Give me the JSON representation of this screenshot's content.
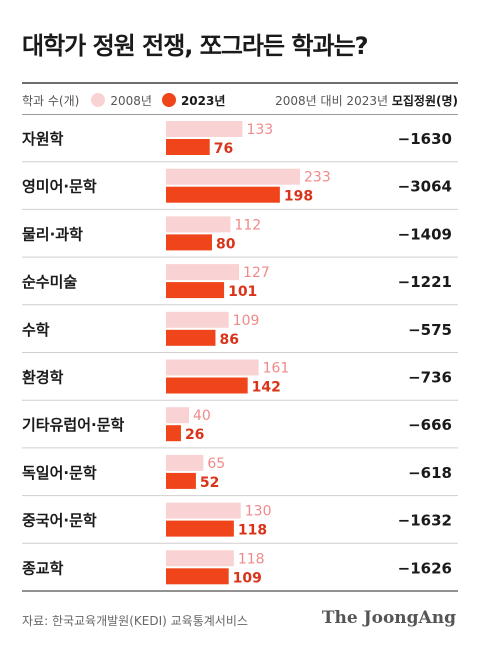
{
  "title": "대학가 정원 전쟁, 쪼그라든 학과는?",
  "legend": {
    "unit_label": "학과 수(개)",
    "series_2008": "2008년",
    "series_2023": "2023년",
    "change_prefix": "2008년 대비 2023년 ",
    "change_bold": "모집정원(명)"
  },
  "colors": {
    "series_2008": "#f9d3d3",
    "series_2023": "#f0441a",
    "label_2008": "#f08a8a",
    "label_2023": "#d9341a",
    "separator": "#cfcfcf"
  },
  "chart_data": {
    "type": "bar",
    "orientation": "horizontal",
    "categories": [
      "자원학",
      "영미어·문학",
      "물리·과학",
      "순수미술",
      "수학",
      "환경학",
      "기타유럽어·문학",
      "독일어·문학",
      "중국어·문학",
      "종교학"
    ],
    "series": [
      {
        "name": "2008년",
        "values": [
          133,
          233,
          112,
          127,
          109,
          161,
          40,
          65,
          130,
          118
        ]
      },
      {
        "name": "2023년",
        "values": [
          76,
          198,
          80,
          101,
          86,
          142,
          26,
          52,
          118,
          109
        ]
      }
    ],
    "change_label": "2008년 대비 2023년 모집정원(명)",
    "change": [
      "−1630",
      "−3064",
      "−1409",
      "−1221",
      "−575",
      "−736",
      "−666",
      "−618",
      "−1632",
      "−1626"
    ],
    "xlim": [
      0,
      233
    ]
  },
  "footer": {
    "source": "자료: 한국교육개발원(KEDI) 교육통계서비스",
    "brand": "The JoongAng"
  }
}
